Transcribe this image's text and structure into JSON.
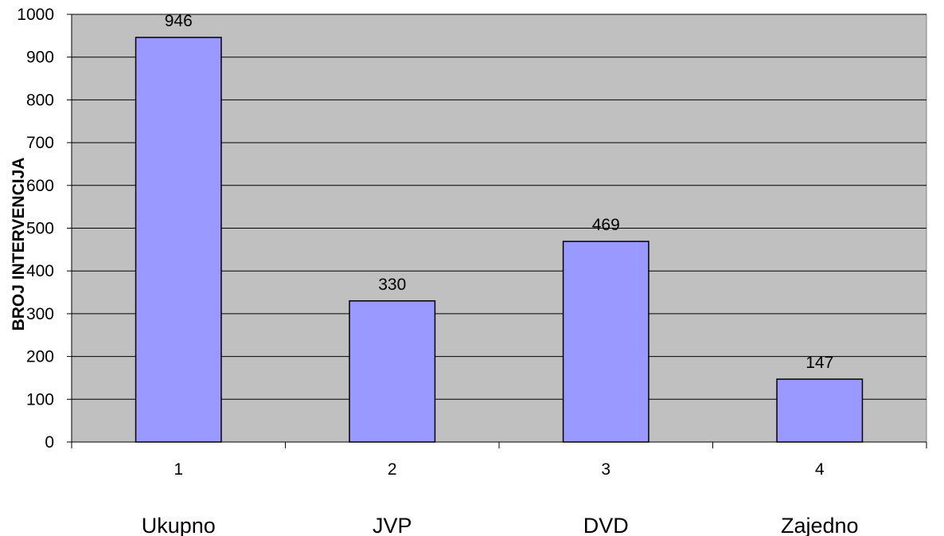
{
  "chart_data": {
    "type": "bar",
    "x": [
      "1",
      "2",
      "3",
      "4"
    ],
    "categories": [
      "Ukupno",
      "JVP",
      "DVD",
      "Zajedno"
    ],
    "values": [
      946,
      330,
      469,
      147
    ],
    "ylabel": "BROJ INTERVENCIJA",
    "ylim": [
      0,
      1000
    ],
    "yticks": [
      "0",
      "100",
      "200",
      "300",
      "400",
      "500",
      "600",
      "700",
      "800",
      "900",
      "1000"
    ],
    "grid": true,
    "legend": "none",
    "colors": {
      "plot_background": "#c0c0c0",
      "bar_fill": "#9999ff",
      "bar_stroke": "#000000",
      "gridline": "#000000"
    }
  }
}
